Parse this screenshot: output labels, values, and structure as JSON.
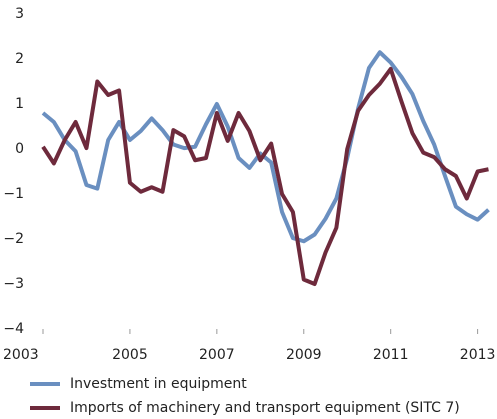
{
  "chart_data": {
    "type": "line",
    "x": [
      2003,
      2003.25,
      2003.5,
      2003.75,
      2004,
      2004.25,
      2004.5,
      2004.75,
      2005,
      2005.25,
      2005.5,
      2005.75,
      2006,
      2006.25,
      2006.5,
      2006.75,
      2007,
      2007.25,
      2007.5,
      2007.75,
      2008,
      2008.25,
      2008.5,
      2008.75,
      2009,
      2009.25,
      2009.5,
      2009.75,
      2010,
      2010.25,
      2010.5,
      2010.75,
      2011,
      2011.25,
      2011.5,
      2011.75,
      2012,
      2012.25,
      2012.5,
      2012.75,
      2013,
      2013.25
    ],
    "series": [
      {
        "name": "Investment in equipment",
        "color": "#6a8fc0",
        "values": [
          0.8,
          0.6,
          0.2,
          -0.05,
          -0.8,
          -0.88,
          0.2,
          0.6,
          0.2,
          0.4,
          0.68,
          0.42,
          0.1,
          0.02,
          0.05,
          0.55,
          1.0,
          0.5,
          -0.2,
          -0.42,
          -0.1,
          -0.3,
          -1.4,
          -1.98,
          -2.05,
          -1.9,
          -1.55,
          -1.1,
          -0.2,
          0.9,
          1.8,
          2.15,
          1.92,
          1.6,
          1.22,
          0.62,
          0.1,
          -0.6,
          -1.28,
          -1.45,
          -1.57,
          -1.35
        ]
      },
      {
        "name": "Imports of machinery and transport equipment (SITC 7)",
        "color": "#6e2a3c",
        "values": [
          0.05,
          -0.32,
          0.2,
          0.6,
          0.02,
          1.5,
          1.2,
          1.3,
          -0.75,
          -0.95,
          -0.85,
          -0.95,
          0.42,
          0.28,
          -0.25,
          -0.2,
          0.8,
          0.18,
          0.8,
          0.4,
          -0.25,
          0.12,
          -1.0,
          -1.4,
          -2.9,
          -3.0,
          -2.3,
          -1.75,
          0.0,
          0.85,
          1.2,
          1.45,
          1.78,
          1.05,
          0.35,
          -0.08,
          -0.18,
          -0.45,
          -0.6,
          -1.1,
          -0.5,
          -0.45
        ]
      }
    ],
    "xlim": [
      2003,
      2013.4
    ],
    "xticks": [
      2003,
      2005,
      2007,
      2009,
      2011,
      2013
    ],
    "ylim": [
      -4,
      3
    ],
    "yticks": [
      {
        "value": -4,
        "label": "−4"
      },
      {
        "value": -3,
        "label": "−3"
      },
      {
        "value": -2,
        "label": "−2"
      },
      {
        "value": -1,
        "label": "−1"
      },
      0,
      1,
      2,
      3
    ],
    "grid": false,
    "legend": "bottom"
  }
}
